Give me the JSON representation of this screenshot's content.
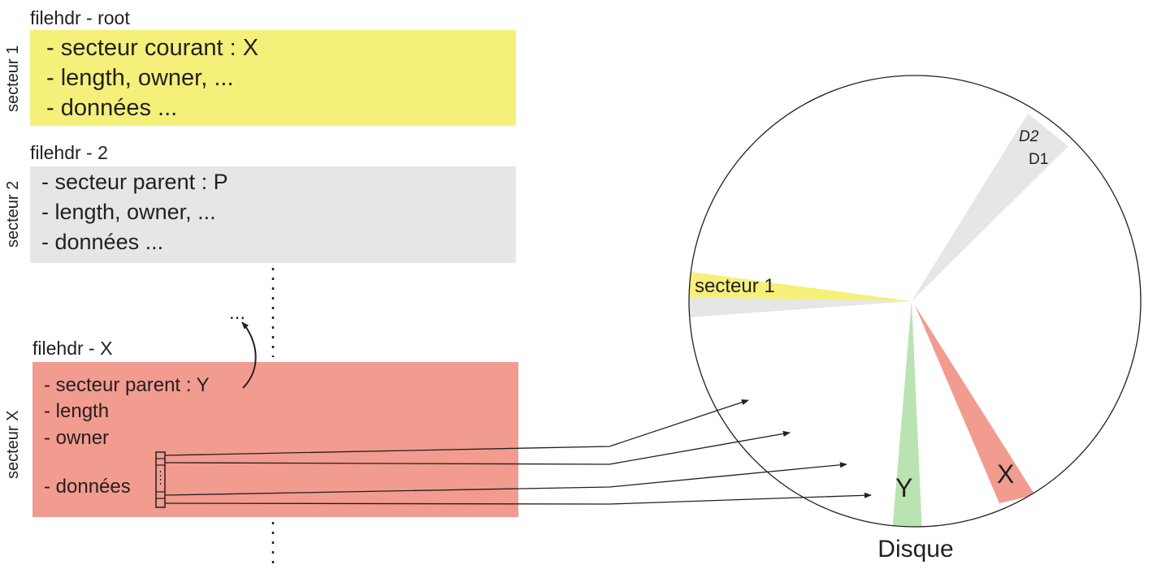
{
  "blocks": {
    "root": {
      "title": "filehdr - root",
      "sector_label": "secteur 1",
      "lines": [
        "- secteur courant : X",
        "- length, owner, ...",
        "- données ..."
      ],
      "color": "#f5f07a"
    },
    "two": {
      "title": "filehdr - 2",
      "sector_label": "secteur 2",
      "lines": [
        "- secteur parent : P",
        "- length, owner, ...",
        "- données ..."
      ],
      "color": "#e6e6e6"
    },
    "x": {
      "title": "filehdr - X",
      "sector_label": "secteur X",
      "lines": [
        "- secteur parent : Y",
        "- length",
        "- owner",
        "- données"
      ],
      "color": "#f29b8f"
    }
  },
  "ellipsis": "...",
  "disk": {
    "label": "Disque",
    "secteur1_label": "secteur 1",
    "d2_label": "D2",
    "d1_label": "D1",
    "y_label": "Y",
    "x_label": "X",
    "colors": {
      "yellow": "#f5f07a",
      "gray": "#e6e6e6",
      "green": "#b9e3b0",
      "red": "#f29b8f"
    }
  }
}
